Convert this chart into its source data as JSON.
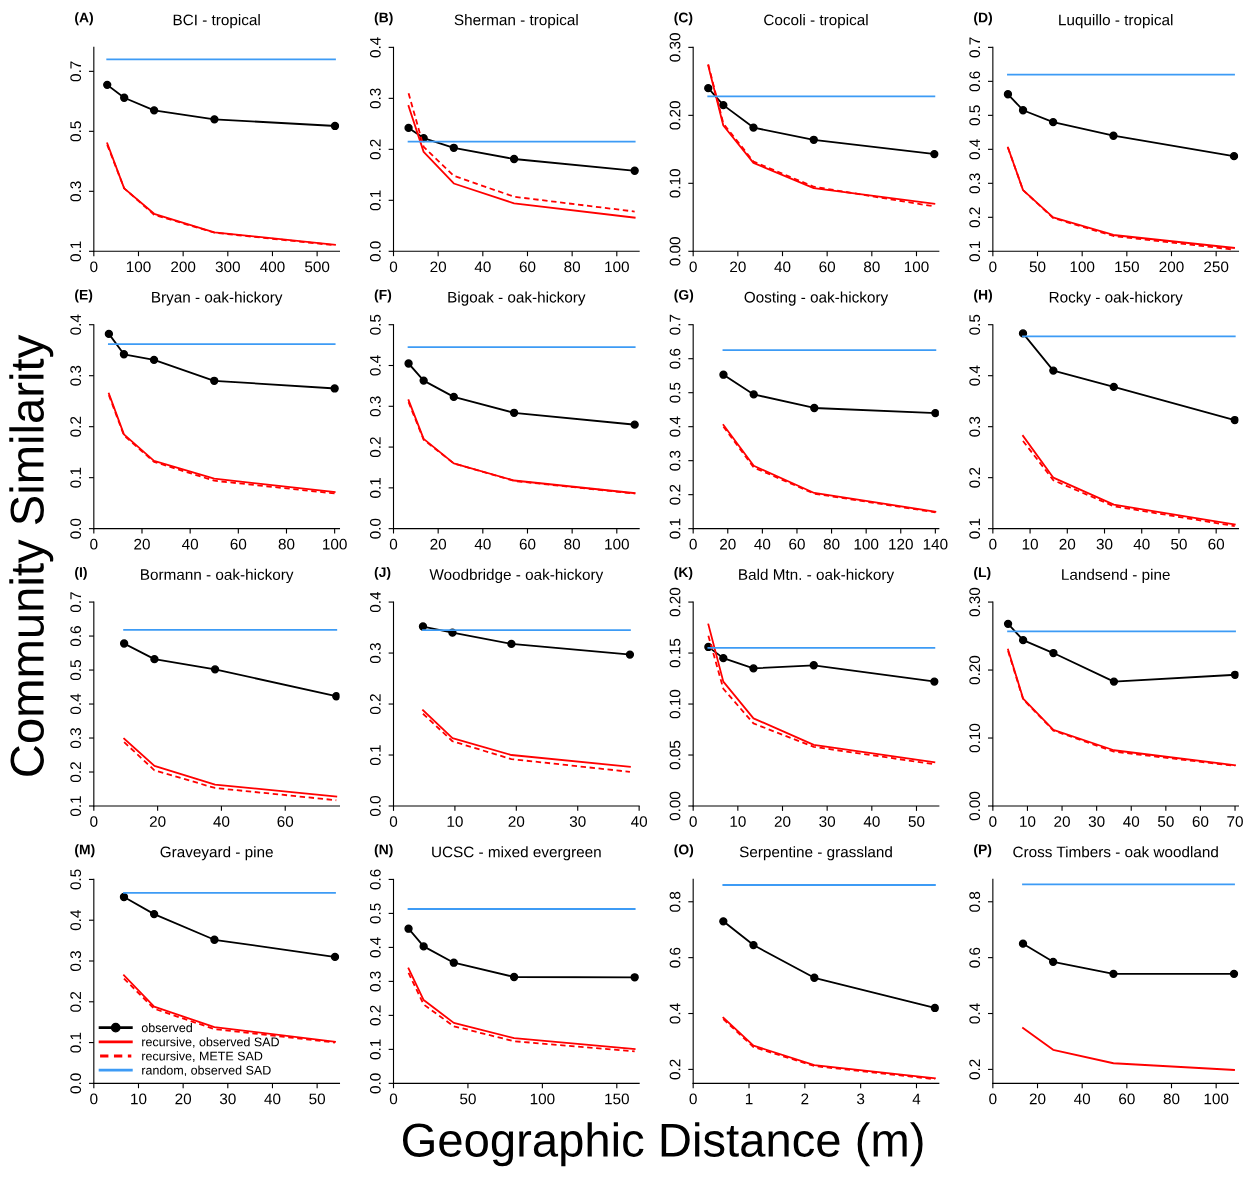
{
  "chart_data": [
    {
      "type": "line",
      "title": "BCI - tropical",
      "annotations": [
        "(A)"
      ],
      "ylabel": "Community Similarity",
      "xlabel": "Geographic Distance (m)",
      "x": [
        30,
        68,
        135,
        270,
        540
      ],
      "xlim": [
        0,
        550
      ],
      "xticks": [
        0,
        100,
        200,
        300,
        400,
        500
      ],
      "ylim": [
        0.1,
        0.78
      ],
      "yticks": [
        0.1,
        0.3,
        0.5,
        0.7
      ],
      "grid": false,
      "legend": false,
      "series": [
        {
          "color": "#000000",
          "marker": "circle",
          "line_style": "solid",
          "values": [
            0.655,
            0.612,
            0.57,
            0.54,
            0.518
          ]
        },
        {
          "color": "#ff0000",
          "marker": "none",
          "line_style": "solid",
          "values": [
            0.46,
            0.31,
            0.225,
            0.163,
            0.122
          ]
        },
        {
          "color": "#ff0000",
          "marker": "none",
          "line_style": "dashed",
          "values": [
            0.455,
            0.31,
            0.222,
            0.162,
            0.12
          ]
        },
        {
          "color": "#3d9bf5",
          "marker": "none",
          "line_style": "solid",
          "x": [
            30,
            540
          ],
          "values": [
            0.74,
            0.74
          ]
        }
      ]
    },
    {
      "type": "line",
      "title": "Sherman - tropical",
      "annotations": [
        "(B)"
      ],
      "x": [
        6.75,
        13.5,
        27,
        54,
        108
      ],
      "xlim": [
        0,
        110
      ],
      "xticks": [
        0,
        20,
        40,
        60,
        80,
        100
      ],
      "ylim": [
        0,
        0.4
      ],
      "yticks": [
        {
          "value": 0,
          "label": "0.0"
        },
        0.1,
        0.2,
        0.3,
        0.4
      ],
      "grid": false,
      "legend": false,
      "series": [
        {
          "color": "#000000",
          "marker": "circle",
          "line_style": "solid",
          "values": [
            0.242,
            0.222,
            0.203,
            0.181,
            0.158
          ]
        },
        {
          "color": "#ff0000",
          "marker": "none",
          "line_style": "solid",
          "values": [
            0.285,
            0.195,
            0.133,
            0.094,
            0.066
          ]
        },
        {
          "color": "#ff0000",
          "marker": "none",
          "line_style": "dashed",
          "values": [
            0.31,
            0.205,
            0.148,
            0.107,
            0.078
          ]
        },
        {
          "color": "#3d9bf5",
          "marker": "none",
          "line_style": "solid",
          "x": [
            6.75,
            108
          ],
          "values": [
            0.215,
            0.215
          ]
        }
      ]
    },
    {
      "type": "line",
      "title": "Cocoli - tropical",
      "annotations": [
        "(C)"
      ],
      "x": [
        6.75,
        13.5,
        27,
        54,
        108
      ],
      "xlim": [
        0,
        110
      ],
      "xticks": [
        0,
        20,
        40,
        60,
        80,
        100
      ],
      "ylim": [
        0,
        0.3
      ],
      "yticks": [
        {
          "value": 0,
          "label": "0.00"
        },
        {
          "value": 0.1,
          "label": "0.10"
        },
        {
          "value": 0.2,
          "label": "0.20"
        },
        {
          "value": 0.3,
          "label": "0.30"
        }
      ],
      "grid": false,
      "legend": false,
      "series": [
        {
          "color": "#000000",
          "marker": "circle",
          "line_style": "solid",
          "values": [
            0.24,
            0.215,
            0.182,
            0.164,
            0.143
          ]
        },
        {
          "color": "#ff0000",
          "marker": "none",
          "line_style": "solid",
          "values": [
            0.273,
            0.185,
            0.13,
            0.093,
            0.07
          ]
        },
        {
          "color": "#ff0000",
          "marker": "none",
          "line_style": "dashed",
          "values": [
            0.275,
            0.188,
            0.132,
            0.095,
            0.066
          ]
        },
        {
          "color": "#3d9bf5",
          "marker": "none",
          "line_style": "solid",
          "x": [
            6.75,
            108
          ],
          "values": [
            0.228,
            0.228
          ]
        }
      ]
    },
    {
      "type": "line",
      "title": "Luquillo - tropical",
      "annotations": [
        "(D)"
      ],
      "x": [
        16.9,
        33.8,
        67.5,
        135,
        270
      ],
      "xlim": [
        0,
        275
      ],
      "xticks": [
        0,
        50,
        100,
        150,
        200,
        250
      ],
      "ylim": [
        0.1,
        0.7
      ],
      "yticks": [
        0.1,
        0.2,
        0.3,
        0.4,
        0.5,
        0.6,
        0.7
      ],
      "grid": false,
      "legend": false,
      "series": [
        {
          "color": "#000000",
          "marker": "circle",
          "line_style": "solid",
          "values": [
            0.562,
            0.515,
            0.48,
            0.44,
            0.38
          ]
        },
        {
          "color": "#ff0000",
          "marker": "none",
          "line_style": "solid",
          "values": [
            0.405,
            0.28,
            0.2,
            0.148,
            0.11
          ]
        },
        {
          "color": "#ff0000",
          "marker": "none",
          "line_style": "dashed",
          "values": [
            0.405,
            0.28,
            0.198,
            0.145,
            0.105
          ]
        },
        {
          "color": "#3d9bf5",
          "marker": "none",
          "line_style": "solid",
          "x": [
            16.9,
            270
          ],
          "values": [
            0.62,
            0.62
          ]
        }
      ]
    },
    {
      "type": "line",
      "title": "Bryan - oak-hickory",
      "annotations": [
        "(E)"
      ],
      "x": [
        6.25,
        12.5,
        25,
        50,
        100
      ],
      "xlim": [
        0,
        102
      ],
      "xticks": [
        0,
        20,
        40,
        60,
        80,
        100
      ],
      "ylim": [
        0,
        0.4
      ],
      "yticks": [
        {
          "value": 0,
          "label": "0.0"
        },
        0.1,
        0.2,
        0.3,
        0.4
      ],
      "grid": false,
      "legend": false,
      "series": [
        {
          "color": "#000000",
          "marker": "circle",
          "line_style": "solid",
          "values": [
            0.382,
            0.342,
            0.331,
            0.29,
            0.275
          ]
        },
        {
          "color": "#ff0000",
          "marker": "none",
          "line_style": "solid",
          "values": [
            0.265,
            0.185,
            0.133,
            0.098,
            0.072
          ]
        },
        {
          "color": "#ff0000",
          "marker": "none",
          "line_style": "dashed",
          "values": [
            0.262,
            0.183,
            0.131,
            0.094,
            0.069
          ]
        },
        {
          "color": "#3d9bf5",
          "marker": "none",
          "line_style": "solid",
          "x": [
            6.25,
            100
          ],
          "values": [
            0.362,
            0.362
          ]
        }
      ]
    },
    {
      "type": "line",
      "title": "Bigoak - oak-hickory",
      "annotations": [
        "(F)"
      ],
      "x": [
        6.75,
        13.5,
        27,
        54,
        108
      ],
      "xlim": [
        0,
        110
      ],
      "xticks": [
        0,
        20,
        40,
        60,
        80,
        100
      ],
      "ylim": [
        0,
        0.5
      ],
      "yticks": [
        {
          "value": 0,
          "label": "0.0"
        },
        0.1,
        0.2,
        0.3,
        0.4,
        0.5
      ],
      "grid": false,
      "legend": false,
      "series": [
        {
          "color": "#000000",
          "marker": "circle",
          "line_style": "solid",
          "values": [
            0.405,
            0.363,
            0.323,
            0.284,
            0.255
          ]
        },
        {
          "color": "#ff0000",
          "marker": "none",
          "line_style": "solid",
          "values": [
            0.315,
            0.22,
            0.16,
            0.118,
            0.087
          ]
        },
        {
          "color": "#ff0000",
          "marker": "none",
          "line_style": "dashed",
          "values": [
            0.31,
            0.218,
            0.16,
            0.117,
            0.086
          ]
        },
        {
          "color": "#3d9bf5",
          "marker": "none",
          "line_style": "solid",
          "x": [
            6.75,
            108
          ],
          "values": [
            0.445,
            0.445
          ]
        }
      ]
    },
    {
      "type": "line",
      "title": "Oosting - oak-hickory",
      "annotations": [
        "(G)"
      ],
      "x": [
        17.5,
        35,
        70,
        140
      ],
      "xlim": [
        0,
        142
      ],
      "xticks": [
        0,
        20,
        40,
        60,
        80,
        100,
        120,
        140
      ],
      "ylim": [
        0.1,
        0.7
      ],
      "yticks": [
        0.1,
        0.2,
        0.3,
        0.4,
        0.5,
        0.6,
        0.7
      ],
      "grid": false,
      "legend": false,
      "series": [
        {
          "color": "#000000",
          "marker": "circle",
          "line_style": "solid",
          "values": [
            0.553,
            0.495,
            0.455,
            0.44
          ]
        },
        {
          "color": "#ff0000",
          "marker": "none",
          "line_style": "solid",
          "values": [
            0.405,
            0.285,
            0.205,
            0.15
          ]
        },
        {
          "color": "#ff0000",
          "marker": "none",
          "line_style": "dashed",
          "values": [
            0.4,
            0.28,
            0.203,
            0.148
          ]
        },
        {
          "color": "#3d9bf5",
          "marker": "none",
          "line_style": "solid",
          "x": [
            17.5,
            140
          ],
          "values": [
            0.625,
            0.625
          ]
        }
      ]
    },
    {
      "type": "line",
      "title": "Rocky - oak-hickory",
      "annotations": [
        "(H)"
      ],
      "x": [
        8.1,
        16.25,
        32.5,
        65
      ],
      "xlim": [
        0,
        66
      ],
      "xticks": [
        0,
        10,
        20,
        30,
        40,
        50,
        60
      ],
      "ylim": [
        0.1,
        0.5
      ],
      "yticks": [
        0.1,
        0.2,
        0.3,
        0.4,
        0.5
      ],
      "grid": false,
      "legend": false,
      "series": [
        {
          "color": "#000000",
          "marker": "circle",
          "line_style": "solid",
          "values": [
            0.483,
            0.41,
            0.378,
            0.313
          ]
        },
        {
          "color": "#ff0000",
          "marker": "none",
          "line_style": "solid",
          "values": [
            0.282,
            0.2,
            0.147,
            0.108
          ]
        },
        {
          "color": "#ff0000",
          "marker": "none",
          "line_style": "dashed",
          "values": [
            0.272,
            0.195,
            0.144,
            0.105
          ]
        },
        {
          "color": "#3d9bf5",
          "marker": "none",
          "line_style": "solid",
          "x": [
            8.1,
            65
          ],
          "values": [
            0.477,
            0.477
          ]
        }
      ]
    },
    {
      "type": "line",
      "title": "Bormann - oak-hickory",
      "annotations": [
        "(I)"
      ],
      "x": [
        9.5,
        19,
        38,
        76
      ],
      "xlim": [
        0,
        77
      ],
      "xticks": [
        0,
        20,
        40,
        60
      ],
      "ylim": [
        0.1,
        0.7
      ],
      "yticks": [
        0.1,
        0.2,
        0.3,
        0.4,
        0.5,
        0.6,
        0.7
      ],
      "grid": false,
      "legend": false,
      "series": [
        {
          "color": "#000000",
          "marker": "circle",
          "line_style": "solid",
          "values": [
            0.578,
            0.532,
            0.502,
            0.423
          ]
        },
        {
          "color": "#ff0000",
          "marker": "none",
          "line_style": "solid",
          "values": [
            0.298,
            0.218,
            0.163,
            0.128
          ]
        },
        {
          "color": "#ff0000",
          "marker": "none",
          "line_style": "dashed",
          "values": [
            0.288,
            0.205,
            0.153,
            0.117
          ]
        },
        {
          "color": "#3d9bf5",
          "marker": "none",
          "line_style": "solid",
          "x": [
            9.5,
            76
          ],
          "values": [
            0.618,
            0.618
          ]
        }
      ]
    },
    {
      "type": "line",
      "title": "Woodbridge - oak-hickory",
      "annotations": [
        "(J)"
      ],
      "x": [
        4.8,
        9.6,
        19.2,
        38.5
      ],
      "xlim": [
        0,
        40
      ],
      "xticks": [
        0,
        10,
        20,
        30,
        40
      ],
      "ylim": [
        0,
        0.4
      ],
      "yticks": [
        {
          "value": 0,
          "label": "0.0"
        },
        0.1,
        0.2,
        0.3,
        0.4
      ],
      "grid": false,
      "legend": false,
      "series": [
        {
          "color": "#000000",
          "marker": "circle",
          "line_style": "solid",
          "values": [
            0.352,
            0.34,
            0.318,
            0.297
          ]
        },
        {
          "color": "#ff0000",
          "marker": "none",
          "line_style": "solid",
          "values": [
            0.188,
            0.133,
            0.1,
            0.077
          ]
        },
        {
          "color": "#ff0000",
          "marker": "none",
          "line_style": "dashed",
          "values": [
            0.181,
            0.127,
            0.092,
            0.067
          ]
        },
        {
          "color": "#3d9bf5",
          "marker": "none",
          "line_style": "solid",
          "x": [
            4.8,
            38.5
          ],
          "values": [
            0.345,
            0.345
          ]
        }
      ]
    },
    {
      "type": "line",
      "title": "Bald Mtn. - oak-hickory",
      "annotations": [
        "(K)"
      ],
      "x": [
        3.4,
        6.75,
        13.5,
        27,
        54
      ],
      "xlim": [
        0,
        55
      ],
      "xticks": [
        0,
        10,
        20,
        30,
        40,
        50
      ],
      "ylim": [
        0,
        0.2
      ],
      "yticks": [
        {
          "value": 0,
          "label": "0.00"
        },
        {
          "value": 0.05,
          "label": "0.05"
        },
        {
          "value": 0.1,
          "label": "0.10"
        },
        {
          "value": 0.15,
          "label": "0.15"
        },
        {
          "value": 0.2,
          "label": "0.20"
        }
      ],
      "grid": false,
      "legend": false,
      "series": [
        {
          "color": "#000000",
          "marker": "circle",
          "line_style": "solid",
          "values": [
            0.156,
            0.145,
            0.135,
            0.138,
            0.122
          ]
        },
        {
          "color": "#ff0000",
          "marker": "none",
          "line_style": "solid",
          "values": [
            0.178,
            0.122,
            0.086,
            0.06,
            0.043
          ]
        },
        {
          "color": "#ff0000",
          "marker": "none",
          "line_style": "dashed",
          "values": [
            0.167,
            0.115,
            0.081,
            0.058,
            0.041
          ]
        },
        {
          "color": "#3d9bf5",
          "marker": "none",
          "line_style": "solid",
          "x": [
            3.4,
            54
          ],
          "values": [
            0.155,
            0.155
          ]
        }
      ]
    },
    {
      "type": "line",
      "title": "Landsend - pine",
      "annotations": [
        "(L)"
      ],
      "x": [
        4.4,
        8.75,
        17.5,
        35,
        70
      ],
      "xlim": [
        0,
        71
      ],
      "xticks": [
        0,
        10,
        20,
        30,
        40,
        50,
        60,
        70
      ],
      "ylim": [
        0,
        0.3
      ],
      "yticks": [
        {
          "value": 0,
          "label": "0.00"
        },
        {
          "value": 0.1,
          "label": "0.10"
        },
        {
          "value": 0.2,
          "label": "0.20"
        },
        {
          "value": 0.3,
          "label": "0.30"
        }
      ],
      "grid": false,
      "legend": false,
      "series": [
        {
          "color": "#000000",
          "marker": "circle",
          "line_style": "solid",
          "values": [
            0.268,
            0.244,
            0.225,
            0.183,
            0.193
          ]
        },
        {
          "color": "#ff0000",
          "marker": "none",
          "line_style": "solid",
          "values": [
            0.23,
            0.158,
            0.112,
            0.082,
            0.06
          ]
        },
        {
          "color": "#ff0000",
          "marker": "none",
          "line_style": "dashed",
          "values": [
            0.228,
            0.157,
            0.111,
            0.08,
            0.059
          ]
        },
        {
          "color": "#3d9bf5",
          "marker": "none",
          "line_style": "solid",
          "x": [
            4.4,
            70
          ],
          "values": [
            0.257,
            0.257
          ]
        }
      ]
    },
    {
      "type": "line",
      "title": "Graveyard - pine",
      "annotations": [
        "(M)"
      ],
      "x": [
        6.75,
        13.5,
        27,
        54
      ],
      "xlim": [
        0,
        55
      ],
      "xticks": [
        0,
        10,
        20,
        30,
        40,
        50
      ],
      "ylim": [
        0,
        0.5
      ],
      "yticks": [
        {
          "value": 0,
          "label": "0.0"
        },
        0.1,
        0.2,
        0.3,
        0.4,
        0.5
      ],
      "grid": false,
      "legend": "bottom left",
      "series": [
        {
          "name": "observed",
          "color": "#000000",
          "marker": "circle",
          "line_style": "solid",
          "values": [
            0.457,
            0.415,
            0.352,
            0.31
          ]
        },
        {
          "name": "recursive, observed SAD",
          "color": "#ff0000",
          "marker": "none",
          "line_style": "solid",
          "values": [
            0.265,
            0.188,
            0.138,
            0.102
          ]
        },
        {
          "name": "recursive, METE SAD",
          "color": "#ff0000",
          "marker": "none",
          "line_style": "dashed",
          "values": [
            0.257,
            0.183,
            0.133,
            0.1
          ]
        },
        {
          "name": "random, observed SAD",
          "color": "#3d9bf5",
          "marker": "none",
          "line_style": "solid",
          "x": [
            6.75,
            54
          ],
          "values": [
            0.467,
            0.467
          ]
        }
      ]
    },
    {
      "type": "line",
      "title": "UCSC - mixed evergreen",
      "annotations": [
        "(N)"
      ],
      "x": [
        10.1,
        20.25,
        40.5,
        81,
        162
      ],
      "xlim": [
        0,
        165
      ],
      "xticks": [
        0,
        50,
        100,
        150
      ],
      "ylim": [
        0,
        0.6
      ],
      "yticks": [
        {
          "value": 0,
          "label": "0.0"
        },
        0.1,
        0.2,
        0.3,
        0.4,
        0.5,
        0.6
      ],
      "grid": false,
      "legend": false,
      "series": [
        {
          "color": "#000000",
          "marker": "circle",
          "line_style": "solid",
          "values": [
            0.455,
            0.403,
            0.355,
            0.313,
            0.312
          ]
        },
        {
          "color": "#ff0000",
          "marker": "none",
          "line_style": "solid",
          "values": [
            0.338,
            0.245,
            0.178,
            0.133,
            0.101
          ]
        },
        {
          "color": "#ff0000",
          "marker": "none",
          "line_style": "dashed",
          "values": [
            0.325,
            0.232,
            0.168,
            0.124,
            0.094
          ]
        },
        {
          "color": "#3d9bf5",
          "marker": "none",
          "line_style": "solid",
          "x": [
            10.1,
            162
          ],
          "values": [
            0.513,
            0.513
          ]
        }
      ]
    },
    {
      "type": "line",
      "title": "Serpentine - grassland",
      "annotations": [
        "(O)"
      ],
      "x": [
        0.54,
        1.08,
        2.17,
        4.33
      ],
      "xlim": [
        0,
        4.4
      ],
      "xticks": [
        0,
        1,
        2,
        3,
        4
      ],
      "ylim": [
        0.15,
        0.88
      ],
      "yticks": [
        0.2,
        0.4,
        0.6,
        0.8
      ],
      "grid": false,
      "legend": false,
      "series": [
        {
          "color": "#000000",
          "marker": "circle",
          "line_style": "solid",
          "values": [
            0.73,
            0.645,
            0.528,
            0.42
          ]
        },
        {
          "color": "#ff0000",
          "marker": "none",
          "line_style": "solid",
          "values": [
            0.385,
            0.285,
            0.215,
            0.168
          ]
        },
        {
          "color": "#ff0000",
          "marker": "none",
          "line_style": "dashed",
          "values": [
            0.38,
            0.28,
            0.212,
            0.165
          ]
        },
        {
          "color": "#3d9bf5",
          "marker": "none",
          "line_style": "solid",
          "x": [
            0.54,
            4.33
          ],
          "values": [
            0.86,
            0.86
          ]
        }
      ]
    },
    {
      "type": "line",
      "title": "Cross Timbers - oak woodland",
      "annotations": [
        "(P)"
      ],
      "x": [
        13.5,
        27,
        54,
        108
      ],
      "xlim": [
        0,
        110
      ],
      "xticks": [
        0,
        20,
        40,
        60,
        80,
        100
      ],
      "ylim": [
        0.15,
        0.88
      ],
      "yticks": [
        0.2,
        0.4,
        0.6,
        0.8
      ],
      "grid": false,
      "legend": false,
      "series": [
        {
          "color": "#000000",
          "marker": "circle",
          "line_style": "solid",
          "values": [
            0.65,
            0.585,
            0.542,
            0.542
          ]
        },
        {
          "color": "#ff0000",
          "marker": "none",
          "line_style": "solid",
          "values": [
            0.348,
            0.27,
            0.222,
            0.198
          ]
        },
        {
          "color": "#3d9bf5",
          "marker": "none",
          "line_style": "solid",
          "x": [
            13.5,
            108
          ],
          "values": [
            0.862,
            0.862
          ]
        }
      ]
    }
  ]
}
